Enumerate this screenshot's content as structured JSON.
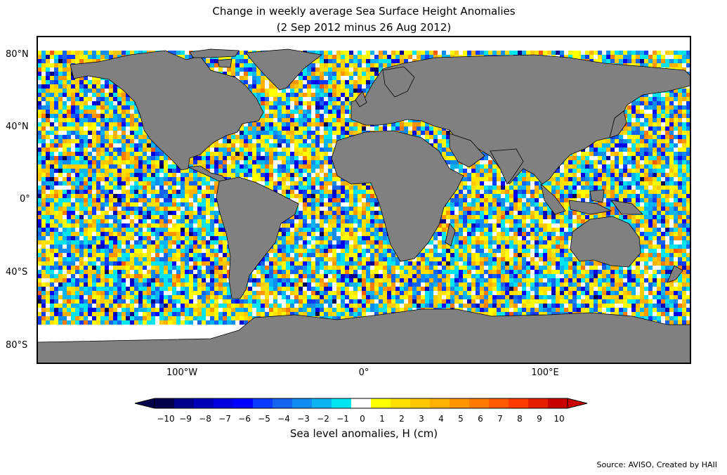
{
  "title": "Change in weekly average Sea Surface Height Anomalies",
  "subtitle": "(2 Sep 2012 minus 26 Aug 2012)",
  "lat_labels": [
    "80°N",
    "40°N",
    "0°",
    "40°S",
    "80°S"
  ],
  "lon_labels": [
    "100°W",
    "0°",
    "100°E"
  ],
  "colorbar": {
    "label": "Sea level anomalies, H (cm)",
    "ticks": [
      "−10",
      "−9",
      "−8",
      "−7",
      "−6",
      "−5",
      "−4",
      "−3",
      "−2",
      "−1",
      "0",
      "1",
      "2",
      "3",
      "4",
      "5",
      "6",
      "7",
      "8",
      "9",
      "10"
    ],
    "colors": [
      "#00004c",
      "#00008c",
      "#0000b8",
      "#0000e0",
      "#0000ff",
      "#0a3cff",
      "#1464f0",
      "#0f8cf0",
      "#0ab4f0",
      "#00e6f0",
      "#ffffff",
      "#ffff00",
      "#ffe100",
      "#ffc800",
      "#ffb000",
      "#ff9600",
      "#ff7a00",
      "#ff5a00",
      "#ff3c00",
      "#e61e00",
      "#c80000"
    ],
    "under_color": "#00004c",
    "over_color": "#c80000"
  },
  "land_color": "#808080",
  "source": "Source: AVISO, Created by HAII"
}
